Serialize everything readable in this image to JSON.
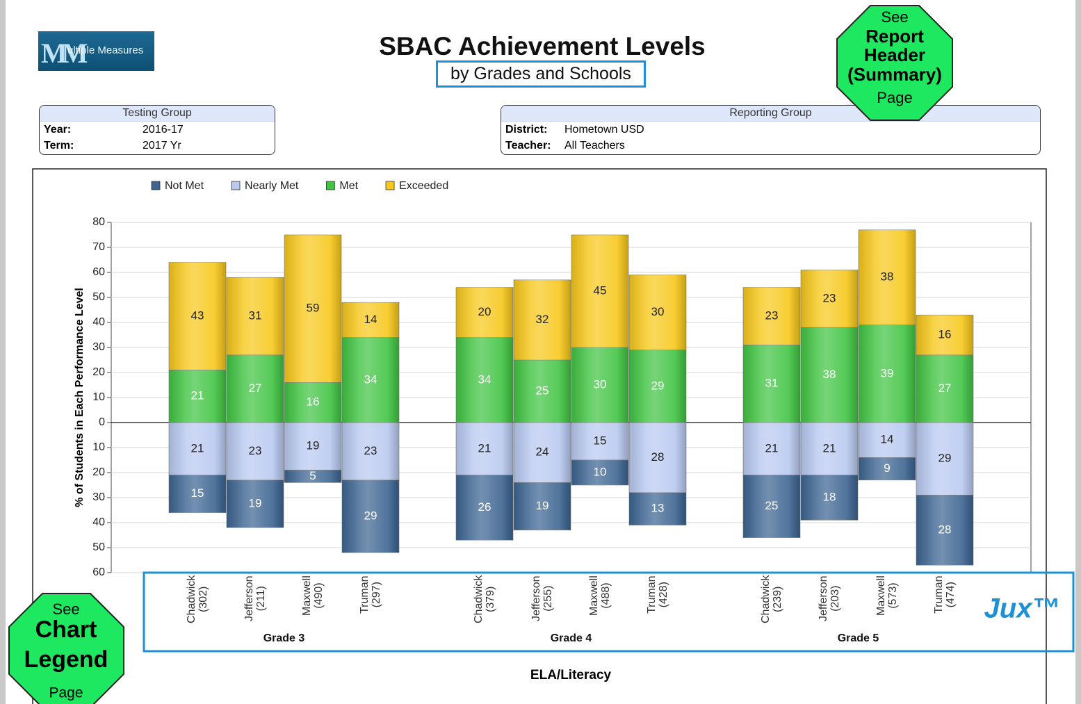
{
  "logo": "ultiple Measures",
  "header": {
    "title": "SBAC Achievement Levels",
    "subtitle": "by Grades and Schools"
  },
  "testing_group": {
    "title": "Testing Group",
    "rows": [
      [
        "Year:",
        "2016-17"
      ],
      [
        "Term:",
        "2017 Yr"
      ]
    ]
  },
  "reporting_group": {
    "title": "Reporting Group",
    "rows": [
      [
        "District:",
        "Hometown USD"
      ],
      [
        "Teacher:",
        "All Teachers"
      ]
    ]
  },
  "callouts": [
    {
      "lines": [
        "See",
        "Report",
        "Header",
        "(Summary)",
        "Page"
      ]
    },
    {
      "lines": [
        "See",
        "Chart",
        "Legend",
        "Page"
      ]
    }
  ],
  "brand": "Jux™",
  "chart_data": {
    "type": "diverging_stacked_bar",
    "y_label": "% of Students in Each Performance Level",
    "x_label": "ELA/Literacy",
    "groups": [
      "Grade 3",
      "Grade 4",
      "Grade 5"
    ],
    "categories": [
      "Chadwick\n(302)",
      "Jefferson\n(211)",
      "Maxwell\n(490)",
      "Truman\n(297)",
      "Chadwick\n(379)",
      "Jefferson\n(255)",
      "Maxwell\n(488)",
      "Truman\n(428)",
      "Chadwick\n(239)",
      "Jefferson\n(203)",
      "Maxwell\n(573)",
      "Truman\n(474)"
    ],
    "series": [
      {
        "name": "Not Met",
        "color": "#3d6591",
        "values": [
          -15,
          -19,
          -5,
          -29,
          -26,
          -19,
          -10,
          -13,
          -25,
          -18,
          -9,
          -28
        ],
        "value_labels": [
          "15",
          "19",
          "5",
          "29",
          "26",
          "19",
          "10",
          "13",
          "25",
          "18",
          "9",
          "28"
        ]
      },
      {
        "name": "Nearly Met",
        "color": "#b9c9f0",
        "values": [
          -21,
          -23,
          -19,
          -23,
          -21,
          -24,
          -15,
          -28,
          -21,
          -21,
          -14,
          -29
        ],
        "value_labels": [
          "21",
          "23",
          "19",
          "23",
          "21",
          "24",
          "15",
          "28",
          "21",
          "21",
          "14",
          "29"
        ]
      },
      {
        "name": "Met",
        "color": "#41c443",
        "values": [
          21,
          27,
          16,
          34,
          34,
          25,
          30,
          29,
          31,
          38,
          39,
          27
        ]
      },
      {
        "name": "Exceeded",
        "color": "#f7c81c",
        "values": [
          43,
          31,
          59,
          14,
          20,
          32,
          45,
          30,
          23,
          23,
          38,
          16
        ]
      }
    ],
    "ylim": [
      -60,
      80
    ],
    "yticks": [
      80,
      70,
      60,
      50,
      40,
      30,
      20,
      10,
      0,
      {
        "value": -10,
        "label": "10"
      },
      {
        "value": -20,
        "label": "20"
      },
      {
        "value": -30,
        "label": "30"
      },
      {
        "value": -40,
        "label": "40"
      },
      {
        "value": -50,
        "label": "50"
      },
      {
        "value": -60,
        "label": "60"
      }
    ],
    "grid": true,
    "legend": "top-left"
  }
}
